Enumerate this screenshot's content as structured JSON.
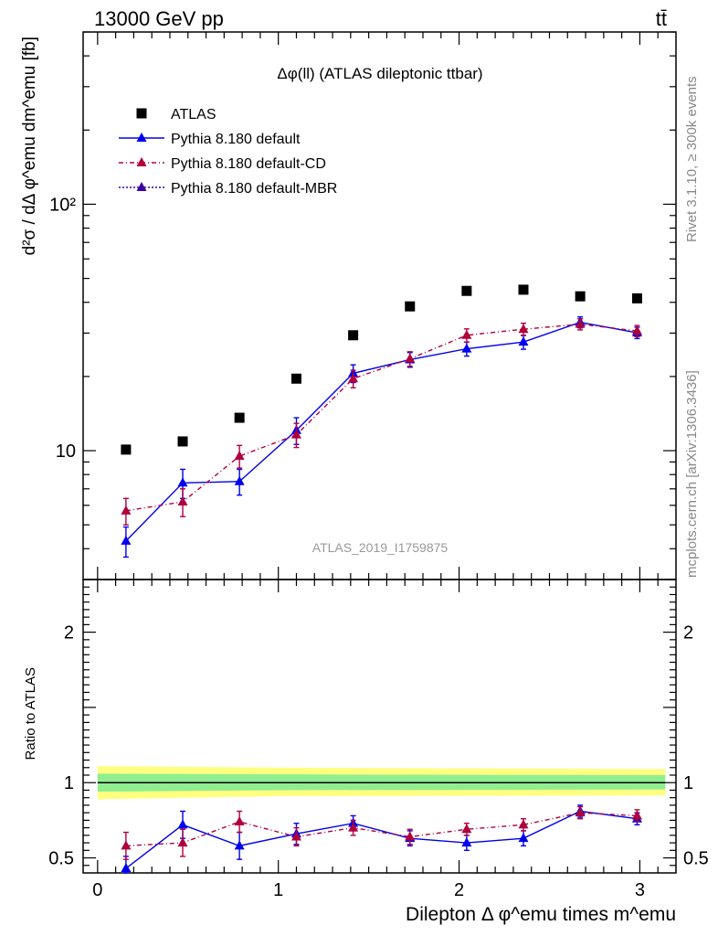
{
  "header": {
    "left": "13000 GeV pp",
    "right": "tt̄"
  },
  "side": {
    "rivet": "Rivet 3.1.10, ≥ 300k events",
    "mcplots": "mcplots.cern.ch [arXiv:1306.3436]"
  },
  "chart_data": {
    "type": "scatter",
    "title": "Δφ(ll) (ATLAS dileptonic ttbar)",
    "watermark": "ATLAS_2019_I1759875",
    "ylabel_main": "d²σ / dΔ φ^emu dm^emu [fb]",
    "ylabel_ratio": "Ratio to ATLAS",
    "xlabel": "Dilepton Δ φ^emu times m^emu",
    "yscale_main": "log",
    "ylim_main": [
      3,
      500
    ],
    "ylim_ratio": [
      0.4,
      2.35
    ],
    "xlim": [
      -0.08,
      3.2
    ],
    "main_yticks": [
      "10",
      "10²"
    ],
    "ratio_yticks": [
      "0.5",
      "1",
      "2"
    ],
    "xticks": [
      "0",
      "1",
      "2",
      "3"
    ],
    "legend": [
      {
        "label": "ATLAS",
        "color": "#000000",
        "marker": "square",
        "line": "none"
      },
      {
        "label": "Pythia 8.180 default",
        "color": "#0000ee",
        "marker": "triangle",
        "line": "solid"
      },
      {
        "label": "Pythia 8.180 default-CD",
        "color": "#b0003c",
        "marker": "triangle",
        "line": "dashdot"
      },
      {
        "label": "Pythia 8.180 default-MBR",
        "color": "#3a00a0",
        "marker": "triangle",
        "line": "dotted"
      }
    ],
    "x": [
      0.157,
      0.471,
      0.785,
      1.1,
      1.414,
      1.728,
      2.042,
      2.356,
      2.67,
      2.985
    ],
    "atlas": [
      10.1,
      10.9,
      13.6,
      19.6,
      29.4,
      38.5,
      44.5,
      45.0,
      42.3,
      41.5
    ],
    "series": [
      {
        "name": "Pythia 8.180 default",
        "values": [
          4.3,
          7.4,
          7.5,
          12.1,
          20.6,
          23.4,
          25.9,
          27.6,
          33.2,
          30.1
        ],
        "err": [
          0.6,
          1.0,
          0.9,
          1.5,
          1.7,
          1.6,
          1.7,
          1.8,
          1.7,
          1.6
        ],
        "ratio": [
          0.43,
          0.72,
          0.58,
          0.66,
          0.73,
          0.63,
          0.6,
          0.63,
          0.81,
          0.76
        ],
        "ratio_err": [
          0.08,
          0.09,
          0.09,
          0.07,
          0.05,
          0.05,
          0.05,
          0.05,
          0.04,
          0.04
        ]
      },
      {
        "name": "Pythia 8.180 default-CD",
        "values": [
          5.7,
          6.2,
          9.5,
          11.6,
          19.6,
          23.6,
          29.4,
          31.1,
          32.6,
          30.6
        ],
        "err": [
          0.7,
          0.8,
          1.0,
          1.3,
          1.6,
          1.6,
          1.8,
          1.8,
          1.7,
          1.6
        ],
        "ratio": [
          0.58,
          0.6,
          0.74,
          0.64,
          0.7,
          0.64,
          0.69,
          0.72,
          0.8,
          0.78
        ],
        "ratio_err": [
          0.09,
          0.09,
          0.07,
          0.06,
          0.05,
          0.05,
          0.04,
          0.04,
          0.04,
          0.04
        ]
      },
      {
        "name": "Pythia 8.180 default-MBR",
        "values": [],
        "err": [],
        "ratio": [],
        "ratio_err": []
      }
    ]
  }
}
